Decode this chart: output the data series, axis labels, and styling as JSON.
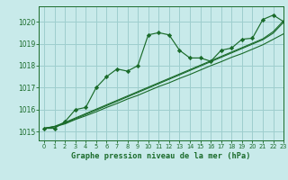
{
  "title": "Graphe pression niveau de la mer (hPa)",
  "bg_color": "#c8eaea",
  "grid_color": "#9ecece",
  "line_color": "#1a6b2a",
  "marker_color": "#1a6b2a",
  "xlim": [
    -0.5,
    23
  ],
  "ylim": [
    1014.6,
    1020.7
  ],
  "yticks": [
    1015,
    1016,
    1017,
    1018,
    1019,
    1020
  ],
  "xticks": [
    0,
    1,
    2,
    3,
    4,
    5,
    6,
    7,
    8,
    9,
    10,
    11,
    12,
    13,
    14,
    15,
    16,
    17,
    18,
    19,
    20,
    21,
    22,
    23
  ],
  "main_series": [
    1015.15,
    1015.15,
    1015.45,
    1016.0,
    1016.1,
    1017.0,
    1017.5,
    1017.85,
    1017.75,
    1018.0,
    1019.4,
    1019.5,
    1019.4,
    1018.7,
    1018.35,
    1018.35,
    1018.2,
    1018.7,
    1018.8,
    1019.2,
    1019.25,
    1020.1,
    1020.3,
    1020.0
  ],
  "trend_lines": [
    [
      1015.15,
      1015.22,
      1015.35,
      1015.55,
      1015.72,
      1015.9,
      1016.1,
      1016.28,
      1016.48,
      1016.65,
      1016.85,
      1017.05,
      1017.22,
      1017.42,
      1017.6,
      1017.8,
      1018.0,
      1018.18,
      1018.38,
      1018.55,
      1018.75,
      1018.95,
      1019.2,
      1019.45
    ],
    [
      1015.15,
      1015.22,
      1015.38,
      1015.58,
      1015.78,
      1015.98,
      1016.18,
      1016.38,
      1016.58,
      1016.78,
      1016.98,
      1017.18,
      1017.38,
      1017.58,
      1017.78,
      1017.98,
      1018.18,
      1018.38,
      1018.58,
      1018.78,
      1018.98,
      1019.18,
      1019.48,
      1019.98
    ],
    [
      1015.15,
      1015.24,
      1015.42,
      1015.62,
      1015.82,
      1016.02,
      1016.22,
      1016.42,
      1016.62,
      1016.82,
      1017.02,
      1017.22,
      1017.42,
      1017.62,
      1017.82,
      1018.02,
      1018.22,
      1018.42,
      1018.62,
      1018.82,
      1019.02,
      1019.22,
      1019.55,
      1020.05
    ]
  ]
}
